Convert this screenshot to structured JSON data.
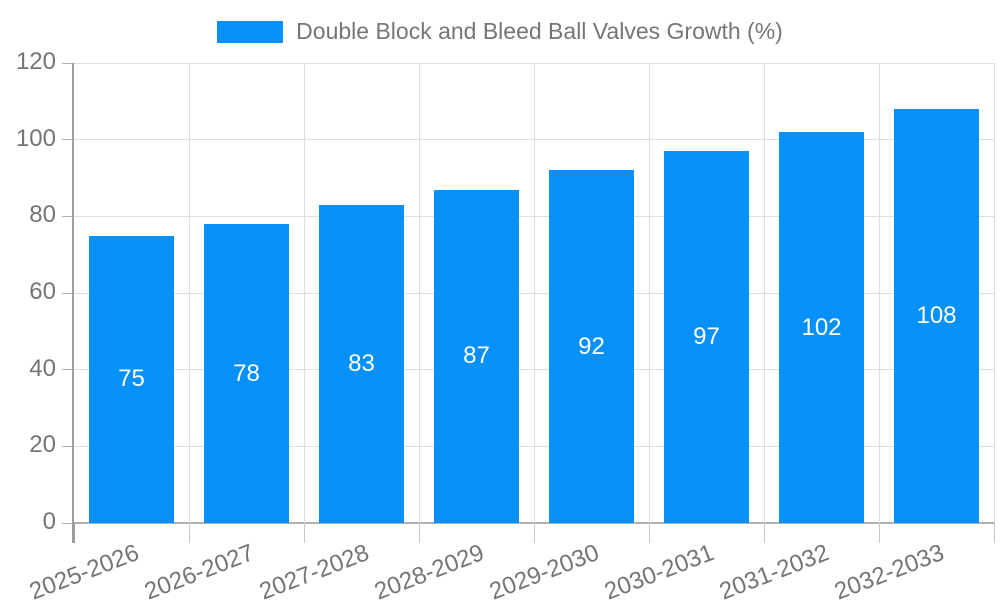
{
  "legend": {
    "label": "Double Block and Bleed Ball Valves Growth (%)"
  },
  "colors": {
    "bar": "#0591F9",
    "grid": "#dedede",
    "axis": "#9e9e9e",
    "baseline": "#b0b0b0",
    "tick": "#c8c8c8",
    "text": "#757575",
    "bar_label": "#ffffff"
  },
  "chart_data": {
    "type": "bar",
    "title": "Double Block and Bleed Ball Valves Growth (%)",
    "categories": [
      "2025-2026",
      "2026-2027",
      "2027-2028",
      "2028-2029",
      "2029-2030",
      "2030-2031",
      "2031-2032",
      "2032-2033"
    ],
    "values": [
      75,
      78,
      83,
      87,
      92,
      97,
      102,
      108
    ],
    "xlabel": "",
    "ylabel": "",
    "ylim": [
      0,
      120
    ],
    "yticks": [
      0,
      20,
      40,
      60,
      80,
      100,
      120
    ],
    "grid": true,
    "legend_position": "top",
    "bar_labels": true,
    "x_label_rotation_deg": -21
  }
}
